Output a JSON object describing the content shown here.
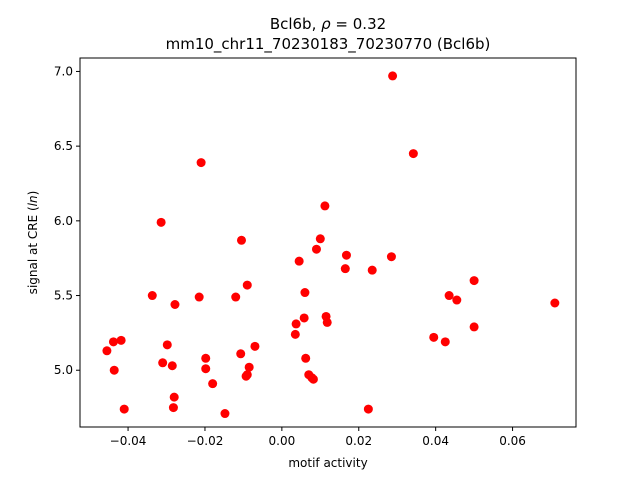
{
  "chart_data": {
    "type": "scatter",
    "title_line1": "Bcl6b, ",
    "title_rho": "ρ",
    "title_eq": " = 0.32",
    "title_line2": "mm10_chr11_70230183_70230770 (Bcl6b)",
    "xlabel": "motif activity",
    "ylabel_prefix": "signal at CRE (",
    "ylabel_italic": "ln",
    "ylabel_suffix": ")",
    "xlim": [
      -0.0525,
      0.0765
    ],
    "ylim": [
      4.62,
      7.09
    ],
    "xticks": [
      -0.04,
      -0.02,
      0.0,
      0.02,
      0.04,
      0.06
    ],
    "xtick_labels": [
      "−0.04",
      "−0.02",
      "0.00",
      "0.02",
      "0.04",
      "0.06"
    ],
    "yticks": [
      5.0,
      5.5,
      6.0,
      6.5,
      7.0
    ],
    "ytick_labels": [
      "5.0",
      "5.5",
      "6.0",
      "6.5",
      "7.0"
    ],
    "marker_color": "#ff0000",
    "grid": false,
    "points": [
      {
        "x": -0.0455,
        "y": 5.13
      },
      {
        "x": -0.0438,
        "y": 5.19
      },
      {
        "x": -0.0436,
        "y": 5.0
      },
      {
        "x": -0.0418,
        "y": 5.2
      },
      {
        "x": -0.041,
        "y": 4.74
      },
      {
        "x": -0.0337,
        "y": 5.5
      },
      {
        "x": -0.0314,
        "y": 5.99
      },
      {
        "x": -0.031,
        "y": 5.05
      },
      {
        "x": -0.0298,
        "y": 5.17
      },
      {
        "x": -0.0285,
        "y": 5.03
      },
      {
        "x": -0.028,
        "y": 4.82
      },
      {
        "x": -0.0282,
        "y": 4.75
      },
      {
        "x": -0.0278,
        "y": 5.44
      },
      {
        "x": -0.0215,
        "y": 5.49
      },
      {
        "x": -0.021,
        "y": 6.39
      },
      {
        "x": -0.0198,
        "y": 5.08
      },
      {
        "x": -0.0198,
        "y": 5.01
      },
      {
        "x": -0.018,
        "y": 4.91
      },
      {
        "x": -0.0148,
        "y": 4.71
      },
      {
        "x": -0.012,
        "y": 5.49
      },
      {
        "x": -0.0107,
        "y": 5.11
      },
      {
        "x": -0.0105,
        "y": 5.87
      },
      {
        "x": -0.009,
        "y": 5.57
      },
      {
        "x": -0.0093,
        "y": 4.96
      },
      {
        "x": -0.009,
        "y": 4.97
      },
      {
        "x": -0.0085,
        "y": 5.02
      },
      {
        "x": -0.007,
        "y": 5.16
      },
      {
        "x": 0.0035,
        "y": 5.24
      },
      {
        "x": 0.0037,
        "y": 5.31
      },
      {
        "x": 0.0045,
        "y": 5.73
      },
      {
        "x": 0.0058,
        "y": 5.35
      },
      {
        "x": 0.006,
        "y": 5.52
      },
      {
        "x": 0.0062,
        "y": 5.08
      },
      {
        "x": 0.007,
        "y": 4.97
      },
      {
        "x": 0.0078,
        "y": 4.95
      },
      {
        "x": 0.0082,
        "y": 4.94
      },
      {
        "x": 0.009,
        "y": 5.81
      },
      {
        "x": 0.01,
        "y": 5.88
      },
      {
        "x": 0.0112,
        "y": 6.1
      },
      {
        "x": 0.0115,
        "y": 5.36
      },
      {
        "x": 0.0118,
        "y": 5.32
      },
      {
        "x": 0.0165,
        "y": 5.68
      },
      {
        "x": 0.0168,
        "y": 5.77
      },
      {
        "x": 0.0225,
        "y": 4.74
      },
      {
        "x": 0.0235,
        "y": 5.67
      },
      {
        "x": 0.0285,
        "y": 5.76
      },
      {
        "x": 0.0288,
        "y": 6.97
      },
      {
        "x": 0.0342,
        "y": 6.45
      },
      {
        "x": 0.0395,
        "y": 5.22
      },
      {
        "x": 0.0425,
        "y": 5.19
      },
      {
        "x": 0.0435,
        "y": 5.5
      },
      {
        "x": 0.0455,
        "y": 5.47
      },
      {
        "x": 0.05,
        "y": 5.29
      },
      {
        "x": 0.05,
        "y": 5.6
      },
      {
        "x": 0.071,
        "y": 5.45
      }
    ]
  }
}
